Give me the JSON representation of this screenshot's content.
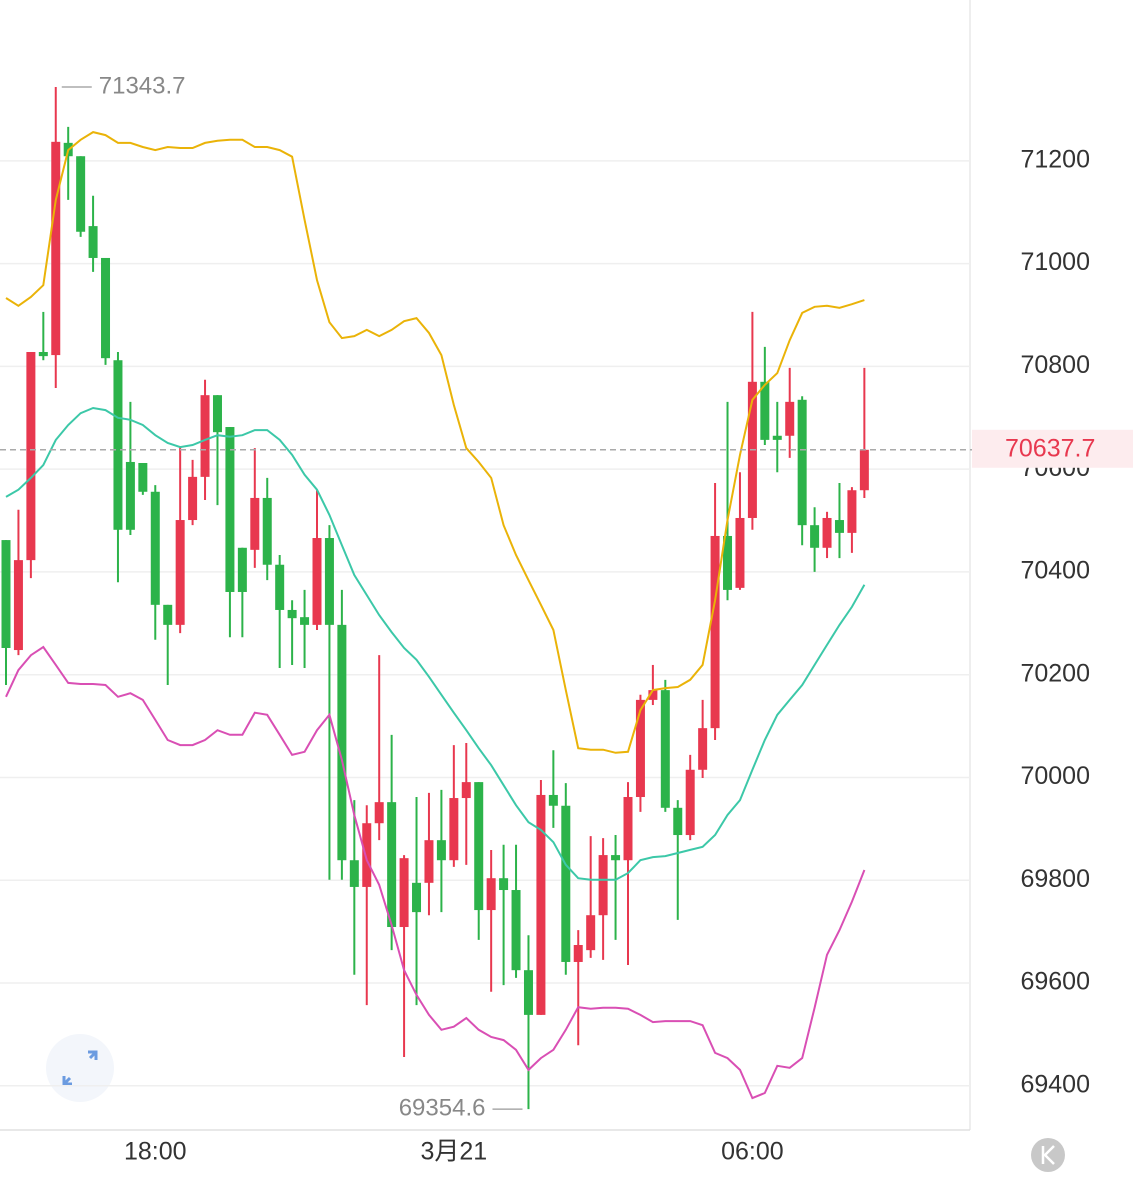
{
  "chart_data": {
    "type": "candlestick",
    "categories": [
      null,
      null,
      null,
      null,
      null,
      null,
      null,
      null,
      null,
      null,
      null,
      null,
      "18:00",
      null,
      null,
      null,
      null,
      null,
      null,
      null,
      null,
      null,
      null,
      null,
      null,
      null,
      null,
      null,
      null,
      null,
      null,
      null,
      null,
      null,
      null,
      null,
      "3月21",
      null,
      null,
      null,
      null,
      null,
      null,
      null,
      null,
      null,
      null,
      null,
      null,
      null,
      null,
      null,
      null,
      null,
      null,
      null,
      null,
      null,
      null,
      null,
      "06:00",
      null,
      null,
      null,
      null,
      null,
      null,
      null,
      null,
      null
    ],
    "open": [
      70462,
      70248,
      70423,
      70828,
      70822,
      71235,
      71209,
      71073,
      71011,
      70812,
      70614,
      70612,
      70556,
      70336,
      70297,
      70501,
      70585,
      70744,
      70682,
      70447,
      70443,
      70544,
      70414,
      70326,
      70312,
      70297,
      70466,
      70297,
      69839,
      69787,
      69911,
      69952,
      69709,
      69795,
      69795,
      69878,
      69839,
      69960,
      69991,
      69742,
      69804,
      69781,
      69625,
      69538,
      69966,
      69945,
      69641,
      69664,
      69732,
      69849,
      69839,
      69962,
      70151,
      70170,
      69941,
      69888,
      70015,
      70096,
      70470,
      70369,
      70505,
      70770,
      70665,
      70665,
      70735,
      70491,
      70447,
      70501,
      70476,
      70559
    ],
    "high": [
      70462,
      70521,
      70828,
      70906,
      71343.7,
      71266,
      71209,
      71132,
      71011,
      70828,
      70731,
      70612,
      70569,
      70336,
      70643,
      70618,
      70774,
      70744,
      70682,
      70447,
      70641,
      70583,
      70433,
      70345,
      70365,
      70559,
      70491,
      70365,
      69956,
      69946,
      70238,
      70083,
      69849,
      69962,
      69970,
      69976,
      70063,
      70067,
      69991,
      69859,
      69869,
      69869,
      69693,
      69995,
      70053,
      69989,
      69703,
      69886,
      69882,
      69888,
      69991,
      70161,
      70219,
      70190,
      69956,
      70044,
      70151,
      70573,
      70731,
      70594,
      70906,
      70838,
      70731,
      70797,
      70742,
      70526,
      70517,
      70573,
      70565,
      70797
    ],
    "low": [
      70180,
      70238,
      70388,
      70812,
      70758,
      71124,
      71052,
      70984,
      70803,
      70380,
      70472,
      70550,
      70268,
      70180,
      70281,
      70491,
      70540,
      70530,
      70273,
      70273,
      70408,
      70384,
      70213,
      70219,
      70213,
      70287,
      69801,
      69801,
      69616,
      69557,
      69878,
      69664,
      69456,
      69557,
      69732,
      69738,
      69826,
      69830,
      69684,
      69583,
      69596,
      69610,
      69354.6,
      69538,
      69902,
      69616,
      69479,
      69649,
      69645,
      69684,
      69635,
      69933,
      70141,
      69933,
      69723,
      69878,
      69999,
      70073,
      70345,
      70365,
      70482,
      70647,
      70594,
      70622,
      70452,
      70400,
      70427,
      70427,
      70437,
      70544
    ],
    "close": [
      70252,
      70423,
      70828,
      70820,
      71237,
      71209,
      71062,
      71011,
      70816,
      70482,
      70482,
      70556,
      70336,
      70297,
      70501,
      70585,
      70744,
      70672,
      70361,
      70361,
      70544,
      70414,
      70326,
      70310,
      70297,
      70466,
      70297,
      69839,
      69787,
      69911,
      69952,
      69709,
      69843,
      69738,
      69878,
      69839,
      69960,
      69991,
      69742,
      69804,
      69781,
      69625,
      69538,
      69966,
      69945,
      69641,
      69674,
      69732,
      69849,
      69839,
      69962,
      70151,
      70170,
      69941,
      69888,
      70015,
      70096,
      70470,
      70365,
      70505,
      70770,
      70657,
      70657,
      70731,
      70491,
      70447,
      70505,
      70476,
      70559,
      70637.7
    ],
    "up_color": "#e8384f",
    "down_color": "#2cb34a",
    "overlays": [
      {
        "color": "#eab308",
        "values": [
          70933,
          70918,
          70935,
          70958,
          71124,
          71221,
          71241,
          71256,
          71250,
          71235,
          71235,
          71227,
          71221,
          71227,
          71225,
          71225,
          71235,
          71239,
          71241,
          71241,
          71227,
          71227,
          71221,
          71208,
          71085,
          70968,
          70886,
          70855,
          70859,
          70871,
          70859,
          70871,
          70888,
          70894,
          70865,
          70822,
          70725,
          70641,
          70614,
          70583,
          70491,
          70433,
          70384,
          70336,
          70287,
          70170,
          70057,
          70054,
          70054,
          70048,
          70050,
          70131,
          70170,
          70174,
          70176,
          70190,
          70219,
          70345,
          70501,
          70628,
          70735,
          70764,
          70787,
          70851,
          70904,
          70916,
          70918,
          70914,
          70921,
          70929
        ]
      },
      {
        "color": "#3cc8a8",
        "values": [
          70546,
          70560,
          70583,
          70608,
          70657,
          70686,
          70709,
          70719,
          70715,
          70700,
          70696,
          70686,
          70666,
          70651,
          70643,
          70647,
          70657,
          70666,
          70663,
          70666,
          70676,
          70676,
          70657,
          70628,
          70589,
          70560,
          70511,
          70452,
          70394,
          70355,
          70316,
          70283,
          70252,
          70229,
          70196,
          70161,
          70126,
          70092,
          70057,
          70024,
          69985,
          69946,
          69913,
          69898,
          69874,
          69830,
          69804,
          69801,
          69801,
          69801,
          69814,
          69839,
          69845,
          69847,
          69853,
          69859,
          69865,
          69888,
          69927,
          69956,
          70015,
          70073,
          70122,
          70151,
          70180,
          70219,
          70258,
          70297,
          70332,
          70375
        ]
      },
      {
        "color": "#d94fb4",
        "values": [
          70157,
          70209,
          70238,
          70254,
          70219,
          70184,
          70182,
          70182,
          70180,
          70157,
          70164,
          70151,
          70112,
          70073,
          70063,
          70063,
          70073,
          70092,
          70083,
          70083,
          70126,
          70122,
          70083,
          70044,
          70050,
          70092,
          70122,
          70034,
          69927,
          69839,
          69791,
          69713,
          69625,
          69577,
          69538,
          69509,
          69515,
          69532,
          69509,
          69495,
          69489,
          69470,
          69431,
          69454,
          69470,
          69509,
          69553,
          69550,
          69552,
          69552,
          69550,
          69538,
          69524,
          69526,
          69526,
          69526,
          69518,
          69464,
          69454,
          69431,
          69376,
          69386,
          69439,
          69435,
          69454,
          69552,
          69655,
          69703,
          69758,
          69820
        ]
      }
    ],
    "ylim": [
      69314,
      71513
    ],
    "yticks": [
      69400,
      69600,
      69800,
      70000,
      70200,
      70400,
      70600,
      70800,
      71000,
      71200
    ],
    "grid": true,
    "high_label": 71343.7,
    "low_label": 69354.6,
    "last_price": 70637.7
  }
}
